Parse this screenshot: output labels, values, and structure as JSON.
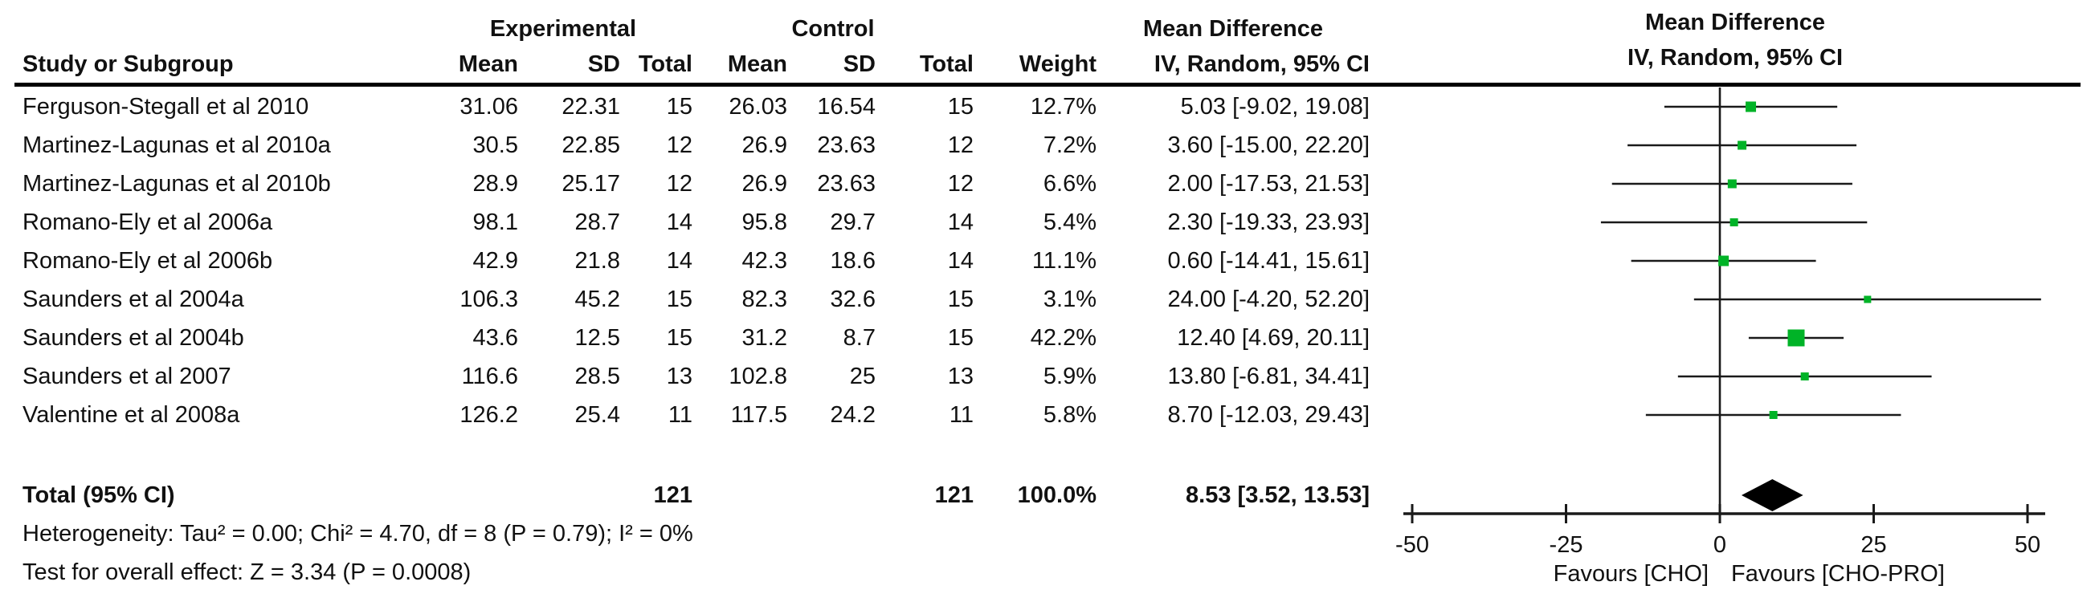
{
  "chart_data": {
    "type": "forest",
    "effect_measure_header": "Mean Difference",
    "method_header": "IV, Random, 95% CI",
    "group_headers": {
      "experimental": "Experimental",
      "control": "Control"
    },
    "columns": {
      "study": "Study or Subgroup",
      "mean": "Mean",
      "sd": "SD",
      "total": "Total",
      "weight": "Weight"
    },
    "studies": [
      {
        "name": "Ferguson-Stegall et al 2010",
        "exp_mean": "31.06",
        "exp_sd": "22.31",
        "exp_total": "15",
        "ctrl_mean": "26.03",
        "ctrl_sd": "16.54",
        "ctrl_total": "15",
        "weight": "12.7%",
        "weight_pct": 12.7,
        "md": 5.03,
        "ci_lo": -9.02,
        "ci_hi": 19.08,
        "ci_text": "5.03 [-9.02, 19.08]"
      },
      {
        "name": "Martinez-Lagunas et al 2010a",
        "exp_mean": "30.5",
        "exp_sd": "22.85",
        "exp_total": "12",
        "ctrl_mean": "26.9",
        "ctrl_sd": "23.63",
        "ctrl_total": "12",
        "weight": "7.2%",
        "weight_pct": 7.2,
        "md": 3.6,
        "ci_lo": -15.0,
        "ci_hi": 22.2,
        "ci_text": "3.60 [-15.00, 22.20]"
      },
      {
        "name": "Martinez-Lagunas et al 2010b",
        "exp_mean": "28.9",
        "exp_sd": "25.17",
        "exp_total": "12",
        "ctrl_mean": "26.9",
        "ctrl_sd": "23.63",
        "ctrl_total": "12",
        "weight": "6.6%",
        "weight_pct": 6.6,
        "md": 2.0,
        "ci_lo": -17.53,
        "ci_hi": 21.53,
        "ci_text": "2.00 [-17.53, 21.53]"
      },
      {
        "name": "Romano-Ely et al 2006a",
        "exp_mean": "98.1",
        "exp_sd": "28.7",
        "exp_total": "14",
        "ctrl_mean": "95.8",
        "ctrl_sd": "29.7",
        "ctrl_total": "14",
        "weight": "5.4%",
        "weight_pct": 5.4,
        "md": 2.3,
        "ci_lo": -19.33,
        "ci_hi": 23.93,
        "ci_text": "2.30 [-19.33, 23.93]"
      },
      {
        "name": "Romano-Ely et al 2006b",
        "exp_mean": "42.9",
        "exp_sd": "21.8",
        "exp_total": "14",
        "ctrl_mean": "42.3",
        "ctrl_sd": "18.6",
        "ctrl_total": "14",
        "weight": "11.1%",
        "weight_pct": 11.1,
        "md": 0.6,
        "ci_lo": -14.41,
        "ci_hi": 15.61,
        "ci_text": "0.60 [-14.41, 15.61]"
      },
      {
        "name": "Saunders et al 2004a",
        "exp_mean": "106.3",
        "exp_sd": "45.2",
        "exp_total": "15",
        "ctrl_mean": "82.3",
        "ctrl_sd": "32.6",
        "ctrl_total": "15",
        "weight": "3.1%",
        "weight_pct": 3.1,
        "md": 24.0,
        "ci_lo": -4.2,
        "ci_hi": 52.2,
        "ci_text": "24.00 [-4.20, 52.20]"
      },
      {
        "name": "Saunders et al 2004b",
        "exp_mean": "43.6",
        "exp_sd": "12.5",
        "exp_total": "15",
        "ctrl_mean": "31.2",
        "ctrl_sd": "8.7",
        "ctrl_total": "15",
        "weight": "42.2%",
        "weight_pct": 42.2,
        "md": 12.4,
        "ci_lo": 4.69,
        "ci_hi": 20.11,
        "ci_text": "12.40 [4.69, 20.11]"
      },
      {
        "name": "Saunders et al 2007",
        "exp_mean": "116.6",
        "exp_sd": "28.5",
        "exp_total": "13",
        "ctrl_mean": "102.8",
        "ctrl_sd": "25",
        "ctrl_total": "13",
        "weight": "5.9%",
        "weight_pct": 5.9,
        "md": 13.8,
        "ci_lo": -6.81,
        "ci_hi": 34.41,
        "ci_text": "13.80 [-6.81, 34.41]"
      },
      {
        "name": "Valentine et al 2008a",
        "exp_mean": "126.2",
        "exp_sd": "25.4",
        "exp_total": "11",
        "ctrl_mean": "117.5",
        "ctrl_sd": "24.2",
        "ctrl_total": "11",
        "weight": "5.8%",
        "weight_pct": 5.8,
        "md": 8.7,
        "ci_lo": -12.03,
        "ci_hi": 29.43,
        "ci_text": "8.70 [-12.03, 29.43]"
      }
    ],
    "total": {
      "label": "Total (95% CI)",
      "exp_total": "121",
      "ctrl_total": "121",
      "weight": "100.0%",
      "md": 8.53,
      "ci_lo": 3.52,
      "ci_hi": 13.53,
      "ci_text": "8.53 [3.52, 13.53]"
    },
    "heterogeneity": "Heterogeneity: Tau² = 0.00; Chi² = 4.70, df = 8 (P = 0.79); I² = 0%",
    "overall_effect": "Test for overall effect: Z = 3.34 (P = 0.0008)",
    "axis": {
      "min": -50,
      "max": 50,
      "ticks": [
        -50,
        -25,
        0,
        25,
        50
      ],
      "favours_left": "Favours [CHO]",
      "favours_right": "Favours [CHO-PRO]"
    },
    "colors": {
      "marker_green": "#00b327",
      "line": "#1a1a1a"
    }
  }
}
